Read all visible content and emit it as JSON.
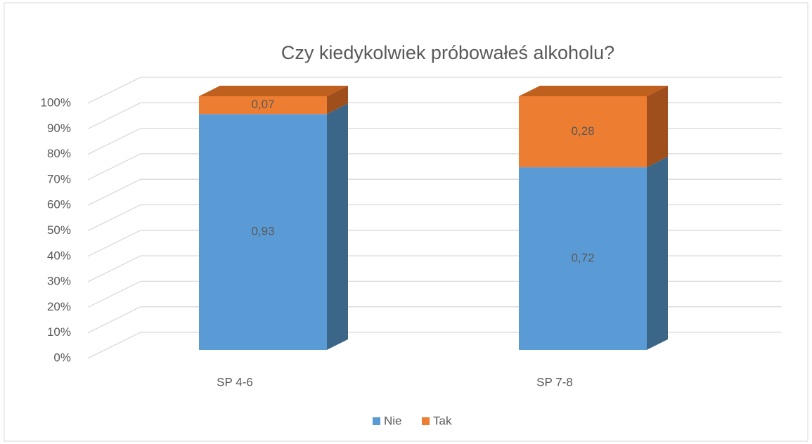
{
  "chart_data": {
    "type": "bar3d_stacked",
    "title": "Czy kiedykolwiek próbowałeś alkoholu?",
    "categories": [
      "SP 4-6",
      "SP 7-8"
    ],
    "series": [
      {
        "name": "Nie",
        "color": "#5b9bd5",
        "side_color": "#3c6688",
        "values": [
          0.93,
          0.72
        ],
        "value_labels": [
          "0,93",
          "0,72"
        ]
      },
      {
        "name": "Tak",
        "color": "#ed7d31",
        "side_color": "#9e4f1c",
        "top_color": "#c0601f",
        "values": [
          0.07,
          0.28
        ],
        "value_labels": [
          "0,07",
          "0,28"
        ]
      }
    ],
    "ylim": [
      0,
      1
    ],
    "yticks": [
      {
        "value": 0,
        "label": "0%"
      },
      {
        "value": 0.1,
        "label": "10%"
      },
      {
        "value": 0.2,
        "label": "20%"
      },
      {
        "value": 0.3,
        "label": "30%"
      },
      {
        "value": 0.4,
        "label": "40%"
      },
      {
        "value": 0.5,
        "label": "50%"
      },
      {
        "value": 0.6,
        "label": "60%"
      },
      {
        "value": 0.7,
        "label": "70%"
      },
      {
        "value": 0.8,
        "label": "80%"
      },
      {
        "value": 0.9,
        "label": "90%"
      },
      {
        "value": 1,
        "label": "100%"
      }
    ],
    "grid": true,
    "legend": "bottom"
  }
}
